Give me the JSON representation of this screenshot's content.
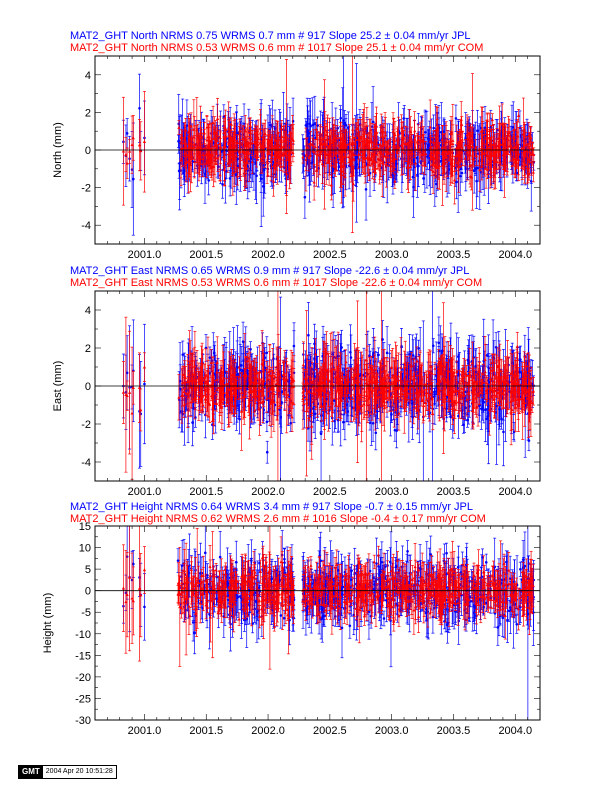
{
  "chart_data": [
    {
      "type": "scatter",
      "xlim": [
        2000.6,
        2004.2
      ],
      "ylim": [
        -5,
        5
      ],
      "ylabel": "North (mm)",
      "xticks": [
        2001.0,
        2001.5,
        2002.0,
        2002.5,
        2003.0,
        2003.5,
        2004.0
      ],
      "xtick_labels": [
        "2001.0",
        "2001.5",
        "2002.0",
        "2002.5",
        "2003.0",
        "2003.5",
        "2004.0"
      ],
      "yticks": [
        -4,
        -2,
        0,
        2,
        4
      ],
      "ytick_labels": [
        "-4",
        "-2",
        "0",
        "2",
        "4"
      ],
      "header_blue": "MAT2_GHT North NRMS 0.75 WRMS  0.7 mm # 917 Slope   25.2 ±  0.04 mm/yr JPL",
      "header_red": "MAT2_GHT North NRMS 0.53 WRMS  0.6 mm # 1017 Slope   25.1 ±  0.04 mm/yr COM",
      "series": [
        {
          "name": "JPL",
          "color": "#0000ff",
          "count": 917,
          "scatter_sd": 0.7,
          "err_sd": 0.9
        },
        {
          "name": "COM",
          "color": "#ff0000",
          "count": 1017,
          "scatter_sd": 0.6,
          "err_sd": 0.8
        }
      ]
    },
    {
      "type": "scatter",
      "xlim": [
        2000.6,
        2004.2
      ],
      "ylim": [
        -5,
        5
      ],
      "ylabel": "East (mm)",
      "xticks": [
        2001.0,
        2001.5,
        2002.0,
        2002.5,
        2003.0,
        2003.5,
        2004.0
      ],
      "xtick_labels": [
        "2001.0",
        "2001.5",
        "2002.0",
        "2002.5",
        "2003.0",
        "2003.5",
        "2004.0"
      ],
      "yticks": [
        -4,
        -2,
        0,
        2,
        4
      ],
      "ytick_labels": [
        "-4",
        "-2",
        "0",
        "2",
        "4"
      ],
      "header_blue": "MAT2_GHT East NRMS 0.65 WRMS  0.9 mm # 917 Slope  -22.6 ±  0.04 mm/yr JPL",
      "header_red": "MAT2_GHT East NRMS 0.53 WRMS  0.6 mm # 1017 Slope  -22.6 ±  0.04 mm/yr COM",
      "series": [
        {
          "name": "JPL",
          "color": "#0000ff",
          "count": 917,
          "scatter_sd": 0.9,
          "err_sd": 1.0
        },
        {
          "name": "COM",
          "color": "#ff0000",
          "count": 1017,
          "scatter_sd": 0.6,
          "err_sd": 0.9
        }
      ]
    },
    {
      "type": "scatter",
      "xlim": [
        2000.6,
        2004.2
      ],
      "ylim": [
        -30,
        15
      ],
      "ylabel": "Height (mm)",
      "xticks": [
        2001.0,
        2001.5,
        2002.0,
        2002.5,
        2003.0,
        2003.5,
        2004.0
      ],
      "xtick_labels": [
        "2001.0",
        "2001.5",
        "2002.0",
        "2002.5",
        "2003.0",
        "2003.5",
        "2004.0"
      ],
      "yticks": [
        -30,
        -25,
        -20,
        -15,
        -10,
        -5,
        0,
        5,
        10,
        15
      ],
      "ytick_labels": [
        "-30",
        "-25",
        "-20",
        "-15",
        "-10",
        "-5",
        "0",
        "5",
        "10",
        "15"
      ],
      "header_blue": "MAT2_GHT Height NRMS 0.64 WRMS  3.4 mm # 917 Slope   -0.7 ±  0.15 mm/yr JPL",
      "header_red": "MAT2_GHT Height NRMS 0.62 WRMS  2.6 mm # 1016 Slope   -0.4 ±  0.17 mm/yr COM",
      "series": [
        {
          "name": "JPL",
          "color": "#0000ff",
          "count": 917,
          "scatter_sd": 3.4,
          "err_sd": 3.5
        },
        {
          "name": "COM",
          "color": "#ff0000",
          "count": 1016,
          "scatter_sd": 2.6,
          "err_sd": 3.2
        }
      ]
    }
  ],
  "footer": {
    "logo": "GMT",
    "timestamp": "2004 Apr 20 10:51:28"
  }
}
